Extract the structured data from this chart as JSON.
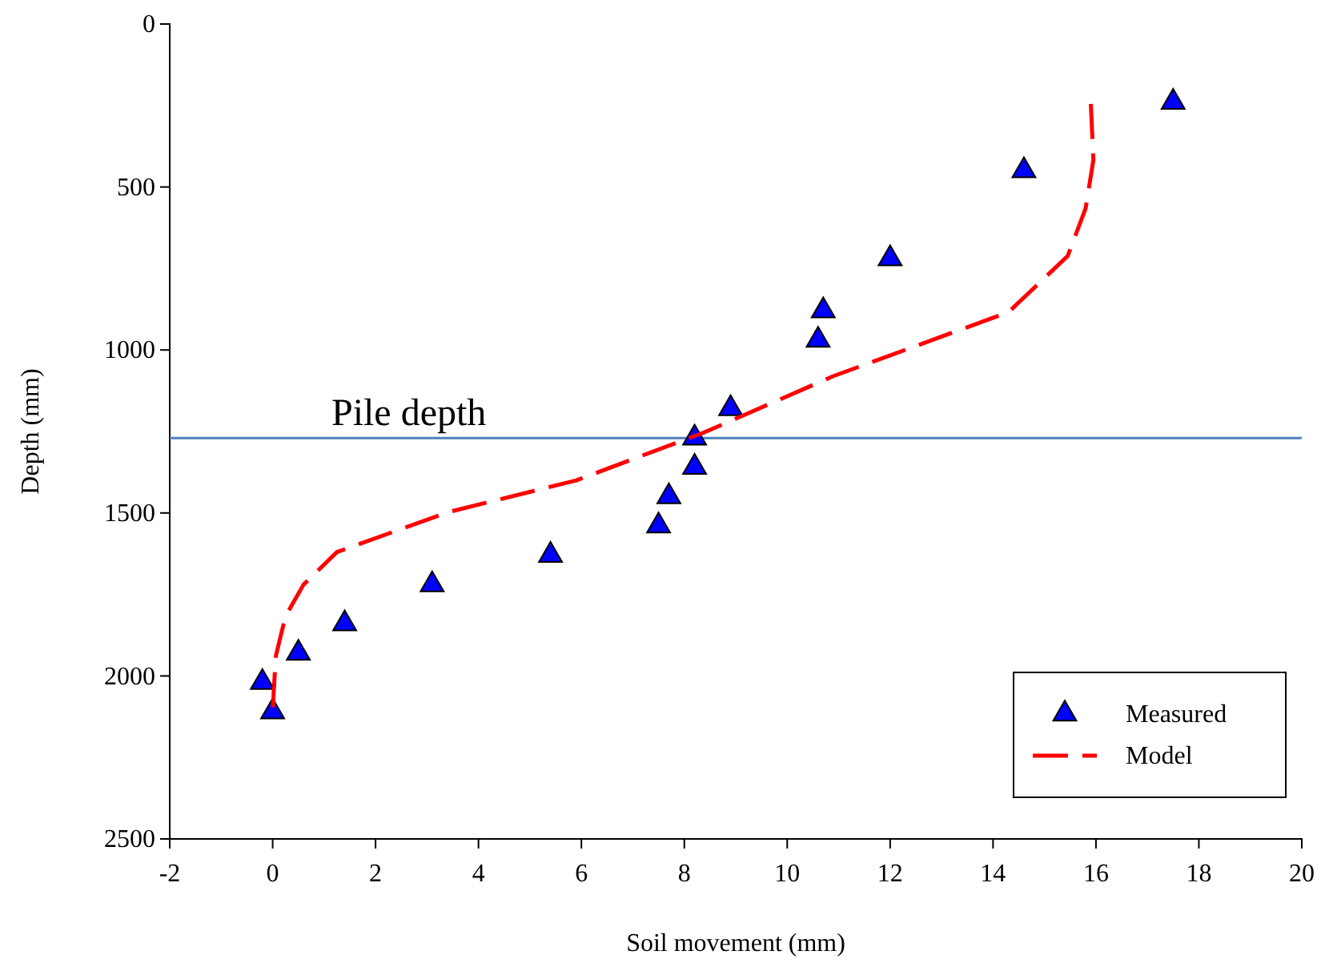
{
  "chart_data": {
    "type": "scatter",
    "xlabel": "Soil movement (mm)",
    "ylabel": "Depth (mm)",
    "xlim": [
      -2,
      20
    ],
    "xticks": [
      -2,
      0,
      2,
      4,
      6,
      8,
      10,
      12,
      14,
      16,
      18,
      20
    ],
    "ylim": [
      2500,
      0
    ],
    "yticks": [
      0,
      500,
      1000,
      1500,
      2000,
      2500
    ],
    "grid": false,
    "legend": "bottom right",
    "ref_lines": [
      {
        "axis": "y",
        "value": 1270,
        "label": "Pile depth",
        "color": "#4f81bd"
      }
    ],
    "series": [
      {
        "name": "Measured",
        "marker": "triangle",
        "color": "#0000ff",
        "x": [
          17.5,
          14.6,
          12,
          10.7,
          10.6,
          8.9,
          8.2,
          8.2,
          7.7,
          7.5,
          5.4,
          3.1,
          1.4,
          0.5,
          -0.2,
          0
        ],
        "values": [
          230,
          440,
          710,
          870,
          960,
          1170,
          1260,
          1350,
          1440,
          1530,
          1620,
          1710,
          1830,
          1920,
          2010,
          2100
        ]
      },
      {
        "name": "Model",
        "type": "line",
        "line_style": "dashed",
        "color": "#ff0000",
        "x": [
          15.9,
          15.95,
          15.8,
          15.45,
          14.3,
          10.9,
          8.4,
          5.9,
          3.4,
          1.25,
          0.6,
          0.25,
          0.06,
          0
        ],
        "values": [
          245,
          417,
          565,
          712,
          884,
          1080,
          1252,
          1400,
          1498,
          1620,
          1720,
          1817,
          1940,
          2110
        ]
      }
    ]
  }
}
